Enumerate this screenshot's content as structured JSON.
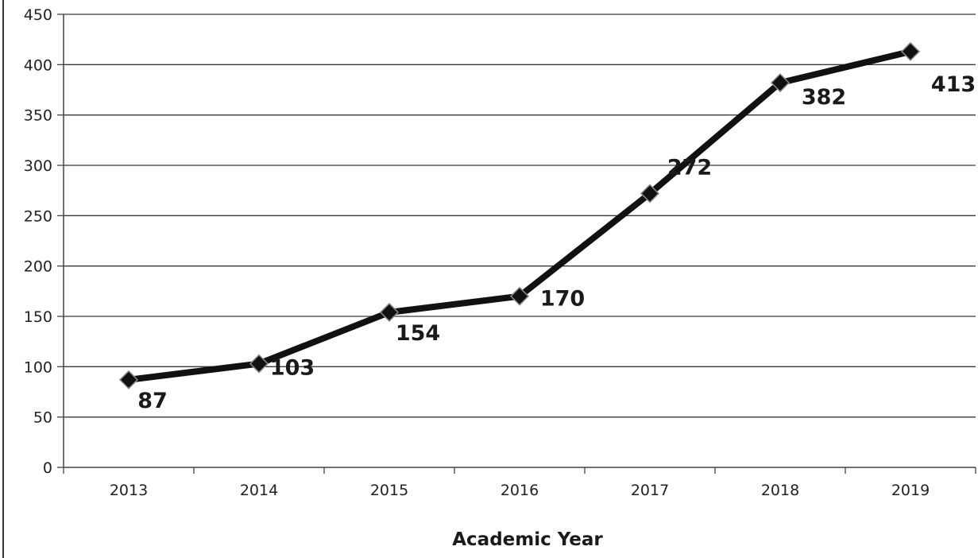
{
  "chart_data": {
    "type": "line",
    "title": "",
    "xlabel": "Academic Year",
    "ylabel": "",
    "categories": [
      "2013",
      "2014",
      "2015",
      "2016",
      "2017",
      "2018",
      "2019"
    ],
    "series": [
      {
        "values": [
          87,
          103,
          154,
          170,
          272,
          382,
          413
        ],
        "color": "#111111",
        "marker": "diamond"
      }
    ],
    "data_labels": [
      "87",
      "103",
      "154",
      "170",
      "272",
      "382",
      "413"
    ],
    "ylim": [
      0,
      450
    ],
    "yticks": [
      "0",
      "50",
      "100",
      "150",
      "200",
      "250",
      "300",
      "350",
      "400",
      "450"
    ],
    "grid": true,
    "legend": "none"
  }
}
